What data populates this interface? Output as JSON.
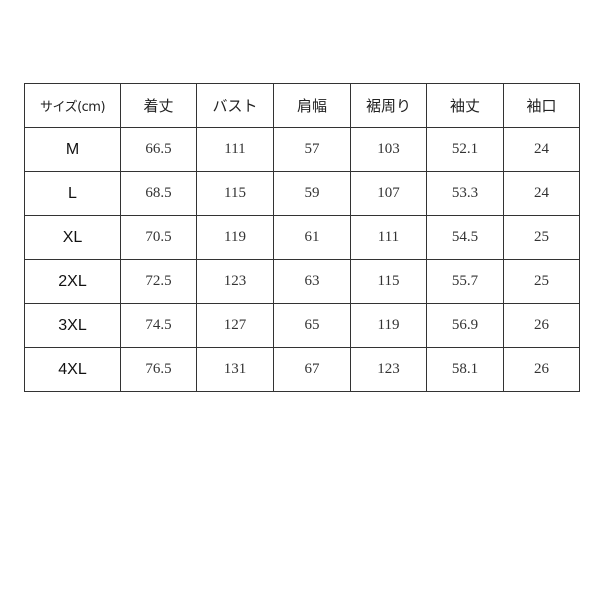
{
  "table": {
    "headers": [
      "サイズ(cm)",
      "着丈",
      "バスト",
      "肩幅",
      "裾周り",
      "袖丈",
      "袖口"
    ],
    "rows": [
      [
        "M",
        "66.5",
        "111",
        "57",
        "103",
        "52.1",
        "24"
      ],
      [
        "L",
        "68.5",
        "115",
        "59",
        "107",
        "53.3",
        "24"
      ],
      [
        "XL",
        "70.5",
        "119",
        "61",
        "111",
        "54.5",
        "25"
      ],
      [
        "2XL",
        "72.5",
        "123",
        "63",
        "115",
        "55.7",
        "25"
      ],
      [
        "3XL",
        "74.5",
        "127",
        "65",
        "119",
        "56.9",
        "26"
      ],
      [
        "4XL",
        "76.5",
        "131",
        "67",
        "123",
        "58.1",
        "26"
      ]
    ]
  }
}
